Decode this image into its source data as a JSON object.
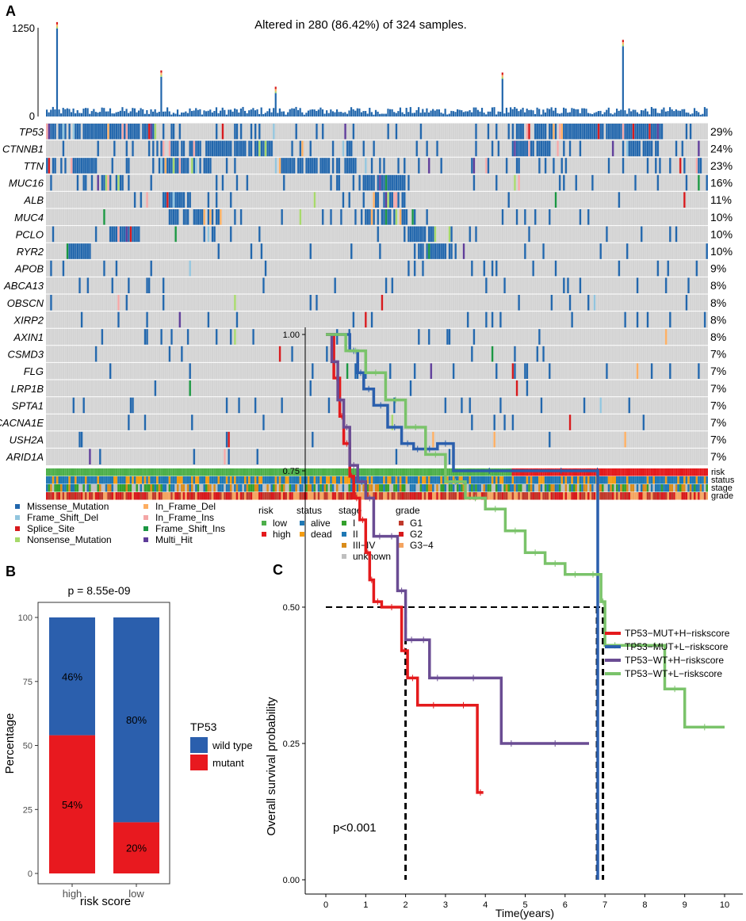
{
  "panels": {
    "a": {
      "label": "A"
    },
    "b": {
      "label": "B"
    },
    "c": {
      "label": "C"
    }
  },
  "colors": {
    "missense": "#2166ac",
    "frame_shift_del": "#92c5de",
    "splice_site": "#d7191c",
    "nonsense": "#a6d96a",
    "in_frame_del": "#fdae61",
    "in_frame_ins": "#f4a6a6",
    "frame_shift_ins": "#1a9641",
    "multi_hit": "#5e3c99",
    "background_cell": "#d3d3d3",
    "risk_low": "#4daf4a",
    "risk_high": "#e41a1c",
    "status_alive": "#1f78b4",
    "status_dead": "#f39c12",
    "stage_i": "#33a02c",
    "stage_ii": "#1f78b4",
    "stage_iii_iv": "#d98c1a",
    "stage_unknown": "#bfbfbf",
    "grade_g1": "#c0392b",
    "grade_g2": "#d7191c",
    "grade_g34": "#f4a460",
    "wild_type": "#2b5fad",
    "mutant": "#e8191f",
    "km_mut_h": "#e41a1c",
    "km_mut_l": "#2b5fad",
    "km_wt_h": "#6a4c93",
    "km_wt_l": "#7ac36a"
  },
  "chart_data": [
    {
      "type": "heatmap",
      "panel": "A",
      "title": "Altered in 280 (86.42%) of 324 samples.",
      "n_samples": 324,
      "n_altered": 280,
      "top_bar": {
        "ylabel_ticks": [
          "1250",
          "0"
        ],
        "ylim": [
          0,
          1250
        ],
        "peaks": [
          {
            "sample": 5,
            "value": 1240
          },
          {
            "sample": 56,
            "value": 560
          },
          {
            "sample": 112,
            "value": 330
          },
          {
            "sample": 223,
            "value": 530
          },
          {
            "sample": 282,
            "value": 990
          }
        ]
      },
      "genes": [
        {
          "name": "TP53",
          "pct": "29%"
        },
        {
          "name": "CTNNB1",
          "pct": "24%"
        },
        {
          "name": "TTN",
          "pct": "23%"
        },
        {
          "name": "MUC16",
          "pct": "16%"
        },
        {
          "name": "ALB",
          "pct": "11%"
        },
        {
          "name": "MUC4",
          "pct": "10%"
        },
        {
          "name": "PCLO",
          "pct": "10%"
        },
        {
          "name": "RYR2",
          "pct": "10%"
        },
        {
          "name": "APOB",
          "pct": "9%"
        },
        {
          "name": "ABCA13",
          "pct": "8%"
        },
        {
          "name": "OBSCN",
          "pct": "8%"
        },
        {
          "name": "XIRP2",
          "pct": "8%"
        },
        {
          "name": "AXIN1",
          "pct": "8%"
        },
        {
          "name": "CSMD3",
          "pct": "7%"
        },
        {
          "name": "FLG",
          "pct": "7%"
        },
        {
          "name": "LRP1B",
          "pct": "7%"
        },
        {
          "name": "SPTA1",
          "pct": "7%"
        },
        {
          "name": "CACNA1E",
          "pct": "7%"
        },
        {
          "name": "USH2A",
          "pct": "7%"
        },
        {
          "name": "ARID1A",
          "pct": "7%"
        }
      ],
      "annotation_tracks": [
        "risk",
        "status",
        "stage",
        "grade"
      ],
      "legends": {
        "mutation": [
          "Missense_Mutation",
          "Frame_Shift_Del",
          "Splice_Site",
          "Nonsense_Mutation",
          "In_Frame_Del",
          "In_Frame_Ins",
          "Frame_Shift_Ins",
          "Multi_Hit"
        ],
        "risk": {
          "title": "risk",
          "items": [
            "low",
            "high"
          ]
        },
        "status": {
          "title": "status",
          "items": [
            "alive",
            "dead"
          ]
        },
        "stage": {
          "title": "stage",
          "items": [
            "I",
            "II",
            "III−IV",
            "unknown"
          ]
        },
        "grade": {
          "title": "grade",
          "items": [
            "G1",
            "G2",
            "G3−4"
          ]
        }
      }
    },
    {
      "type": "bar",
      "panel": "B",
      "title": "p = 8.55e-09",
      "categories": [
        "high",
        "low"
      ],
      "series": [
        {
          "name": "mutant",
          "values": [
            54,
            20
          ],
          "labels": [
            "54%",
            "20%"
          ]
        },
        {
          "name": "wild type",
          "values": [
            46,
            80
          ],
          "labels": [
            "46%",
            "80%"
          ]
        }
      ],
      "xlabel": "risk score",
      "ylabel": "Percentage",
      "ylim": [
        0,
        100
      ],
      "yticks": [
        0,
        25,
        50,
        75,
        100
      ],
      "legend": {
        "title": "TP53",
        "items": [
          "wild type",
          "mutant"
        ]
      }
    },
    {
      "type": "line",
      "panel": "C",
      "xlabel": "Time(years)",
      "ylabel": "Overall survival probability",
      "xlim": [
        0,
        10.5
      ],
      "ylim": [
        0,
        1.02
      ],
      "xticks": [
        0,
        1,
        2,
        3,
        4,
        5,
        6,
        7,
        8,
        9,
        10
      ],
      "yticks": [
        "0.00",
        "0.25",
        "0.50",
        "0.75",
        "1.00"
      ],
      "annotation": "p<0.001",
      "median_lines": [
        2.0,
        6.8,
        6.95
      ],
      "series": [
        {
          "name": "TP53−MUT+H−riskscore",
          "x": [
            0,
            0.2,
            0.35,
            0.45,
            0.6,
            0.7,
            0.85,
            1.0,
            1.1,
            1.2,
            1.4,
            1.9,
            2.05,
            2.3,
            3.1,
            3.8,
            3.95
          ],
          "y": [
            1.0,
            0.92,
            0.85,
            0.8,
            0.74,
            0.7,
            0.66,
            0.6,
            0.55,
            0.51,
            0.5,
            0.42,
            0.37,
            0.32,
            0.32,
            0.16,
            0.16
          ]
        },
        {
          "name": "TP53−MUT+L−riskscore",
          "x": [
            0,
            0.6,
            0.8,
            0.95,
            1.2,
            1.55,
            1.9,
            2.2,
            2.4,
            2.8,
            3.2,
            5.0,
            6.8,
            6.82
          ],
          "y": [
            1.0,
            0.97,
            0.93,
            0.9,
            0.87,
            0.83,
            0.8,
            0.79,
            0.79,
            0.8,
            0.75,
            0.75,
            0.75,
            0.0
          ]
        },
        {
          "name": "TP53−WT+H−riskscore",
          "x": [
            0,
            0.15,
            0.3,
            0.45,
            0.6,
            0.8,
            1.0,
            1.2,
            1.5,
            1.8,
            2.0,
            2.3,
            2.6,
            3.0,
            4.4,
            4.9,
            6.6
          ],
          "y": [
            1.0,
            0.95,
            0.88,
            0.83,
            0.76,
            0.73,
            0.7,
            0.63,
            0.63,
            0.53,
            0.44,
            0.44,
            0.37,
            0.37,
            0.25,
            0.25,
            0.25
          ]
        },
        {
          "name": "TP53−WT+L−riskscore",
          "x": [
            0,
            0.5,
            1.0,
            1.5,
            2.0,
            2.5,
            3.0,
            3.5,
            4.0,
            4.5,
            5.0,
            5.5,
            6.0,
            6.5,
            6.9,
            7.0,
            7.5,
            8.0,
            8.5,
            9.0,
            10.0
          ],
          "y": [
            1.0,
            0.97,
            0.93,
            0.88,
            0.83,
            0.78,
            0.73,
            0.7,
            0.68,
            0.64,
            0.6,
            0.58,
            0.56,
            0.56,
            0.51,
            0.43,
            0.43,
            0.43,
            0.35,
            0.28,
            0.28
          ]
        }
      ]
    }
  ]
}
